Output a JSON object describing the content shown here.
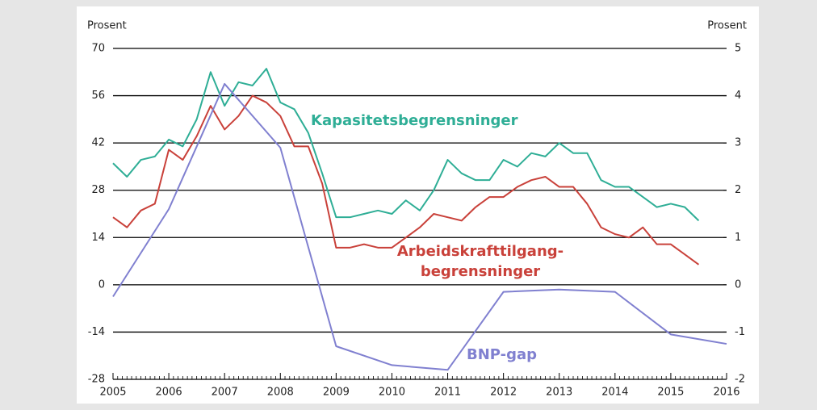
{
  "chart_data": {
    "type": "line",
    "y_label": "Prosent",
    "y2_label": "Prosent",
    "xlim": [
      2005,
      2016
    ],
    "xticks": [
      2005,
      2006,
      2007,
      2008,
      2009,
      2010,
      2011,
      2012,
      2013,
      2014,
      2015,
      2016
    ],
    "ylim": [
      -28,
      70
    ],
    "yticks": [
      -28,
      -14,
      0,
      14,
      28,
      42,
      56,
      70
    ],
    "y2lim": [
      -2,
      5
    ],
    "y2ticks": [
      -2,
      -1,
      0,
      1,
      2,
      3,
      4,
      5
    ],
    "grid": true,
    "series": [
      {
        "name": "Kapasitetsbegrensninger",
        "color": "#2fae96",
        "x": [
          2005,
          2005.25,
          2005.5,
          2005.75,
          2006,
          2006.25,
          2006.5,
          2006.75,
          2007,
          2007.25,
          2007.5,
          2007.75,
          2008,
          2008.25,
          2008.5,
          2008.75,
          2009,
          2009.25,
          2009.5,
          2009.75,
          2010,
          2010.25,
          2010.5,
          2010.75,
          2011,
          2011.25,
          2011.5,
          2011.75,
          2012,
          2012.25,
          2012.5,
          2012.75,
          2013,
          2013.25,
          2013.5,
          2013.75,
          2014,
          2014.25,
          2014.5,
          2014.75,
          2015,
          2015.25,
          2015.5
        ],
        "values": [
          36,
          32,
          37,
          38,
          43,
          41,
          49,
          63,
          53,
          60,
          59,
          64,
          54,
          52,
          45,
          33,
          20,
          20,
          21,
          22,
          21,
          25,
          22,
          28,
          37,
          33,
          31,
          31,
          37,
          35,
          39,
          38,
          42,
          39,
          39,
          31,
          29,
          29,
          26,
          23,
          24,
          23,
          19
        ]
      },
      {
        "name": [
          "Arbeidskrafttilgang-",
          "begrensninger"
        ],
        "color": "#c9413a",
        "x": [
          2005,
          2005.25,
          2005.5,
          2005.75,
          2006,
          2006.25,
          2006.5,
          2006.75,
          2007,
          2007.25,
          2007.5,
          2007.75,
          2008,
          2008.25,
          2008.5,
          2008.75,
          2009,
          2009.25,
          2009.5,
          2009.75,
          2010,
          2010.25,
          2010.5,
          2010.75,
          2011,
          2011.25,
          2011.5,
          2011.75,
          2012,
          2012.25,
          2012.5,
          2012.75,
          2013,
          2013.25,
          2013.5,
          2013.75,
          2014,
          2014.25,
          2014.5,
          2014.75,
          2015,
          2015.25,
          2015.5
        ],
        "values": [
          20,
          17,
          22,
          24,
          40,
          37,
          44,
          53,
          46,
          50,
          56,
          54,
          50,
          41,
          41,
          30,
          11,
          11,
          12,
          11,
          11,
          14,
          17,
          21,
          20,
          19,
          23,
          26,
          26,
          29,
          31,
          32,
          29,
          29,
          24,
          17,
          15,
          14,
          17,
          12,
          12,
          9,
          6
        ]
      },
      {
        "name": "BNP-gap",
        "color": "#8080d0",
        "axis": "y2",
        "x": [
          2005,
          2006,
          2007,
          2008,
          2009,
          2010,
          2011,
          2012,
          2013,
          2014,
          2015,
          2016
        ],
        "values": [
          -0.25,
          1.6,
          4.25,
          2.9,
          -1.3,
          -1.7,
          -1.8,
          -0.15,
          -0.1,
          -0.15,
          -1.05,
          -1.25
        ]
      }
    ]
  }
}
